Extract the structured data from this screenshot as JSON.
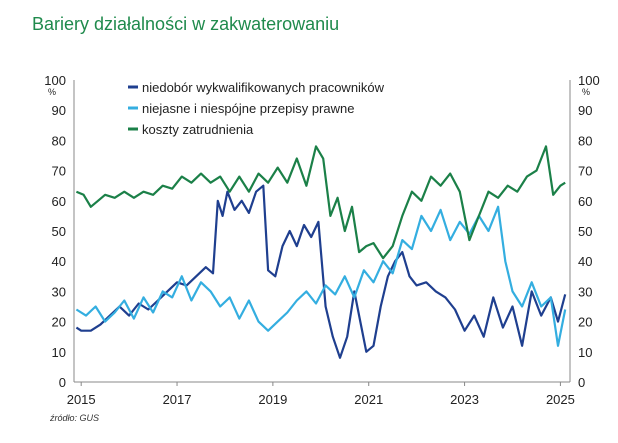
{
  "title": "Bariery działalności w zakwaterowaniu",
  "source": "źródło: GUS",
  "chart_data": {
    "type": "line",
    "unit_left": "%",
    "unit_right": "%",
    "ylim": [
      0,
      100
    ],
    "yticks": [
      0,
      10,
      20,
      30,
      40,
      50,
      60,
      70,
      80,
      90,
      100
    ],
    "xlim": [
      2014.85,
      2025.2
    ],
    "xticks": [
      2015,
      2017,
      2019,
      2021,
      2023,
      2025
    ],
    "grid": false,
    "legend_position": "top-center",
    "series": [
      {
        "name": "niedobór wykwalifikowanych pracowników",
        "color": "#1f3f8f",
        "points": [
          [
            2014.9,
            18
          ],
          [
            2015.0,
            17
          ],
          [
            2015.2,
            17
          ],
          [
            2015.4,
            19
          ],
          [
            2015.6,
            22
          ],
          [
            2015.8,
            25
          ],
          [
            2016.0,
            22
          ],
          [
            2016.2,
            26
          ],
          [
            2016.4,
            24
          ],
          [
            2016.6,
            27
          ],
          [
            2016.8,
            30
          ],
          [
            2017.0,
            33
          ],
          [
            2017.2,
            32
          ],
          [
            2017.4,
            35
          ],
          [
            2017.6,
            38
          ],
          [
            2017.75,
            36
          ],
          [
            2017.85,
            60
          ],
          [
            2017.95,
            55
          ],
          [
            2018.05,
            63
          ],
          [
            2018.2,
            57
          ],
          [
            2018.35,
            60
          ],
          [
            2018.5,
            56
          ],
          [
            2018.65,
            63
          ],
          [
            2018.8,
            65
          ],
          [
            2018.9,
            37
          ],
          [
            2019.05,
            35
          ],
          [
            2019.2,
            45
          ],
          [
            2019.35,
            50
          ],
          [
            2019.5,
            45
          ],
          [
            2019.65,
            52
          ],
          [
            2019.8,
            48
          ],
          [
            2019.95,
            53
          ],
          [
            2020.1,
            25
          ],
          [
            2020.25,
            15
          ],
          [
            2020.4,
            8
          ],
          [
            2020.55,
            15
          ],
          [
            2020.7,
            30
          ],
          [
            2020.85,
            18
          ],
          [
            2020.95,
            10
          ],
          [
            2021.1,
            12
          ],
          [
            2021.25,
            25
          ],
          [
            2021.4,
            35
          ],
          [
            2021.55,
            40
          ],
          [
            2021.7,
            43
          ],
          [
            2021.85,
            35
          ],
          [
            2022.0,
            32
          ],
          [
            2022.2,
            33
          ],
          [
            2022.4,
            30
          ],
          [
            2022.6,
            28
          ],
          [
            2022.8,
            24
          ],
          [
            2023.0,
            17
          ],
          [
            2023.2,
            22
          ],
          [
            2023.4,
            15
          ],
          [
            2023.6,
            28
          ],
          [
            2023.8,
            18
          ],
          [
            2024.0,
            25
          ],
          [
            2024.2,
            12
          ],
          [
            2024.4,
            30
          ],
          [
            2024.6,
            22
          ],
          [
            2024.8,
            28
          ],
          [
            2024.95,
            20
          ],
          [
            2025.1,
            29
          ]
        ]
      },
      {
        "name": "niejasne i niespójne przepisy prawne",
        "color": "#34aee0",
        "points": [
          [
            2014.9,
            24
          ],
          [
            2015.1,
            22
          ],
          [
            2015.3,
            25
          ],
          [
            2015.5,
            20
          ],
          [
            2015.7,
            23
          ],
          [
            2015.9,
            27
          ],
          [
            2016.1,
            21
          ],
          [
            2016.3,
            28
          ],
          [
            2016.5,
            23
          ],
          [
            2016.7,
            30
          ],
          [
            2016.9,
            28
          ],
          [
            2017.1,
            35
          ],
          [
            2017.3,
            27
          ],
          [
            2017.5,
            33
          ],
          [
            2017.7,
            30
          ],
          [
            2017.9,
            25
          ],
          [
            2018.1,
            28
          ],
          [
            2018.3,
            21
          ],
          [
            2018.5,
            27
          ],
          [
            2018.7,
            20
          ],
          [
            2018.9,
            17
          ],
          [
            2019.1,
            20
          ],
          [
            2019.3,
            23
          ],
          [
            2019.5,
            27
          ],
          [
            2019.7,
            30
          ],
          [
            2019.9,
            26
          ],
          [
            2020.1,
            32
          ],
          [
            2020.3,
            29
          ],
          [
            2020.5,
            35
          ],
          [
            2020.7,
            28
          ],
          [
            2020.9,
            37
          ],
          [
            2021.1,
            33
          ],
          [
            2021.3,
            40
          ],
          [
            2021.5,
            36
          ],
          [
            2021.7,
            47
          ],
          [
            2021.9,
            44
          ],
          [
            2022.1,
            55
          ],
          [
            2022.3,
            50
          ],
          [
            2022.5,
            57
          ],
          [
            2022.7,
            47
          ],
          [
            2022.9,
            53
          ],
          [
            2023.1,
            49
          ],
          [
            2023.3,
            55
          ],
          [
            2023.5,
            50
          ],
          [
            2023.7,
            58
          ],
          [
            2023.85,
            40
          ],
          [
            2024.0,
            30
          ],
          [
            2024.2,
            25
          ],
          [
            2024.4,
            33
          ],
          [
            2024.6,
            25
          ],
          [
            2024.8,
            28
          ],
          [
            2024.95,
            12
          ],
          [
            2025.1,
            24
          ]
        ]
      },
      {
        "name": "koszty zatrudnienia",
        "color": "#1b8048",
        "points": [
          [
            2014.9,
            63
          ],
          [
            2015.05,
            62
          ],
          [
            2015.2,
            58
          ],
          [
            2015.35,
            60
          ],
          [
            2015.5,
            62
          ],
          [
            2015.7,
            61
          ],
          [
            2015.9,
            63
          ],
          [
            2016.1,
            61
          ],
          [
            2016.3,
            63
          ],
          [
            2016.5,
            62
          ],
          [
            2016.7,
            65
          ],
          [
            2016.9,
            64
          ],
          [
            2017.1,
            68
          ],
          [
            2017.3,
            66
          ],
          [
            2017.5,
            69
          ],
          [
            2017.7,
            66
          ],
          [
            2017.9,
            68
          ],
          [
            2018.1,
            63
          ],
          [
            2018.3,
            68
          ],
          [
            2018.5,
            63
          ],
          [
            2018.7,
            69
          ],
          [
            2018.9,
            66
          ],
          [
            2019.1,
            71
          ],
          [
            2019.3,
            66
          ],
          [
            2019.5,
            74
          ],
          [
            2019.7,
            65
          ],
          [
            2019.9,
            78
          ],
          [
            2020.05,
            74
          ],
          [
            2020.2,
            55
          ],
          [
            2020.35,
            61
          ],
          [
            2020.5,
            50
          ],
          [
            2020.65,
            58
          ],
          [
            2020.8,
            43
          ],
          [
            2020.95,
            45
          ],
          [
            2021.1,
            46
          ],
          [
            2021.3,
            41
          ],
          [
            2021.5,
            45
          ],
          [
            2021.7,
            55
          ],
          [
            2021.9,
            63
          ],
          [
            2022.1,
            60
          ],
          [
            2022.3,
            68
          ],
          [
            2022.5,
            65
          ],
          [
            2022.7,
            69
          ],
          [
            2022.9,
            63
          ],
          [
            2023.1,
            47
          ],
          [
            2023.3,
            55
          ],
          [
            2023.5,
            63
          ],
          [
            2023.7,
            61
          ],
          [
            2023.9,
            65
          ],
          [
            2024.1,
            63
          ],
          [
            2024.3,
            68
          ],
          [
            2024.5,
            70
          ],
          [
            2024.7,
            78
          ],
          [
            2024.85,
            62
          ],
          [
            2025.0,
            65
          ],
          [
            2025.1,
            66
          ]
        ]
      }
    ]
  }
}
